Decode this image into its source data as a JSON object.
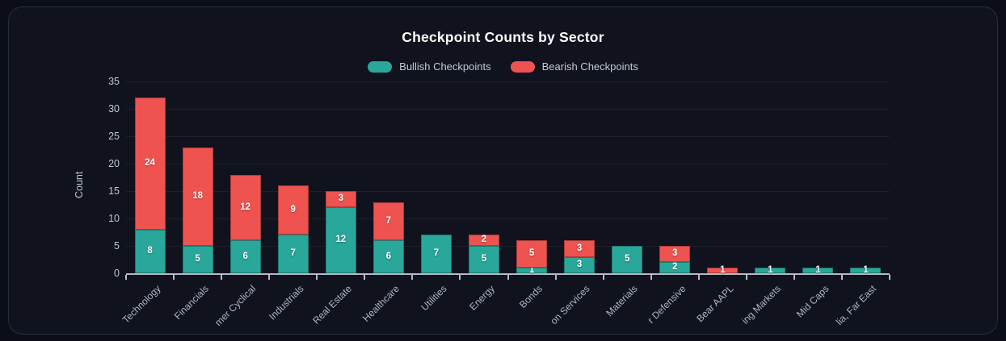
{
  "window": {
    "background": "#0c0e17",
    "card_background": "#10121d",
    "card_border": "#272c40"
  },
  "chart_data": {
    "type": "bar",
    "stacked": true,
    "title": "Checkpoint Counts by Sector",
    "ylabel": "Count",
    "ylim": [
      0,
      35
    ],
    "yticks": [
      0,
      5,
      10,
      15,
      20,
      25,
      30,
      35
    ],
    "grid": "horizontal",
    "legend_position": "top",
    "categories": [
      "Technology",
      "Financials",
      "mer Cyclical",
      "Industrials",
      "Real Estate",
      "Healthcare",
      "Utilities",
      "Energy",
      "Bonds",
      "on Services",
      "Materials",
      "r Defensive",
      "Bear AAPL",
      "ing Markets",
      "Mid Caps",
      "lia, Far East"
    ],
    "series": [
      {
        "name": "Bullish Checkpoints",
        "color": "#2aa79b",
        "values": [
          8,
          5,
          6,
          7,
          12,
          6,
          7,
          5,
          1,
          3,
          5,
          2,
          0,
          1,
          1,
          1
        ]
      },
      {
        "name": "Bearish Checkpoints",
        "color": "#ef5350",
        "values": [
          24,
          18,
          12,
          9,
          3,
          7,
          0,
          2,
          5,
          3,
          0,
          3,
          1,
          0,
          0,
          0
        ]
      }
    ]
  }
}
